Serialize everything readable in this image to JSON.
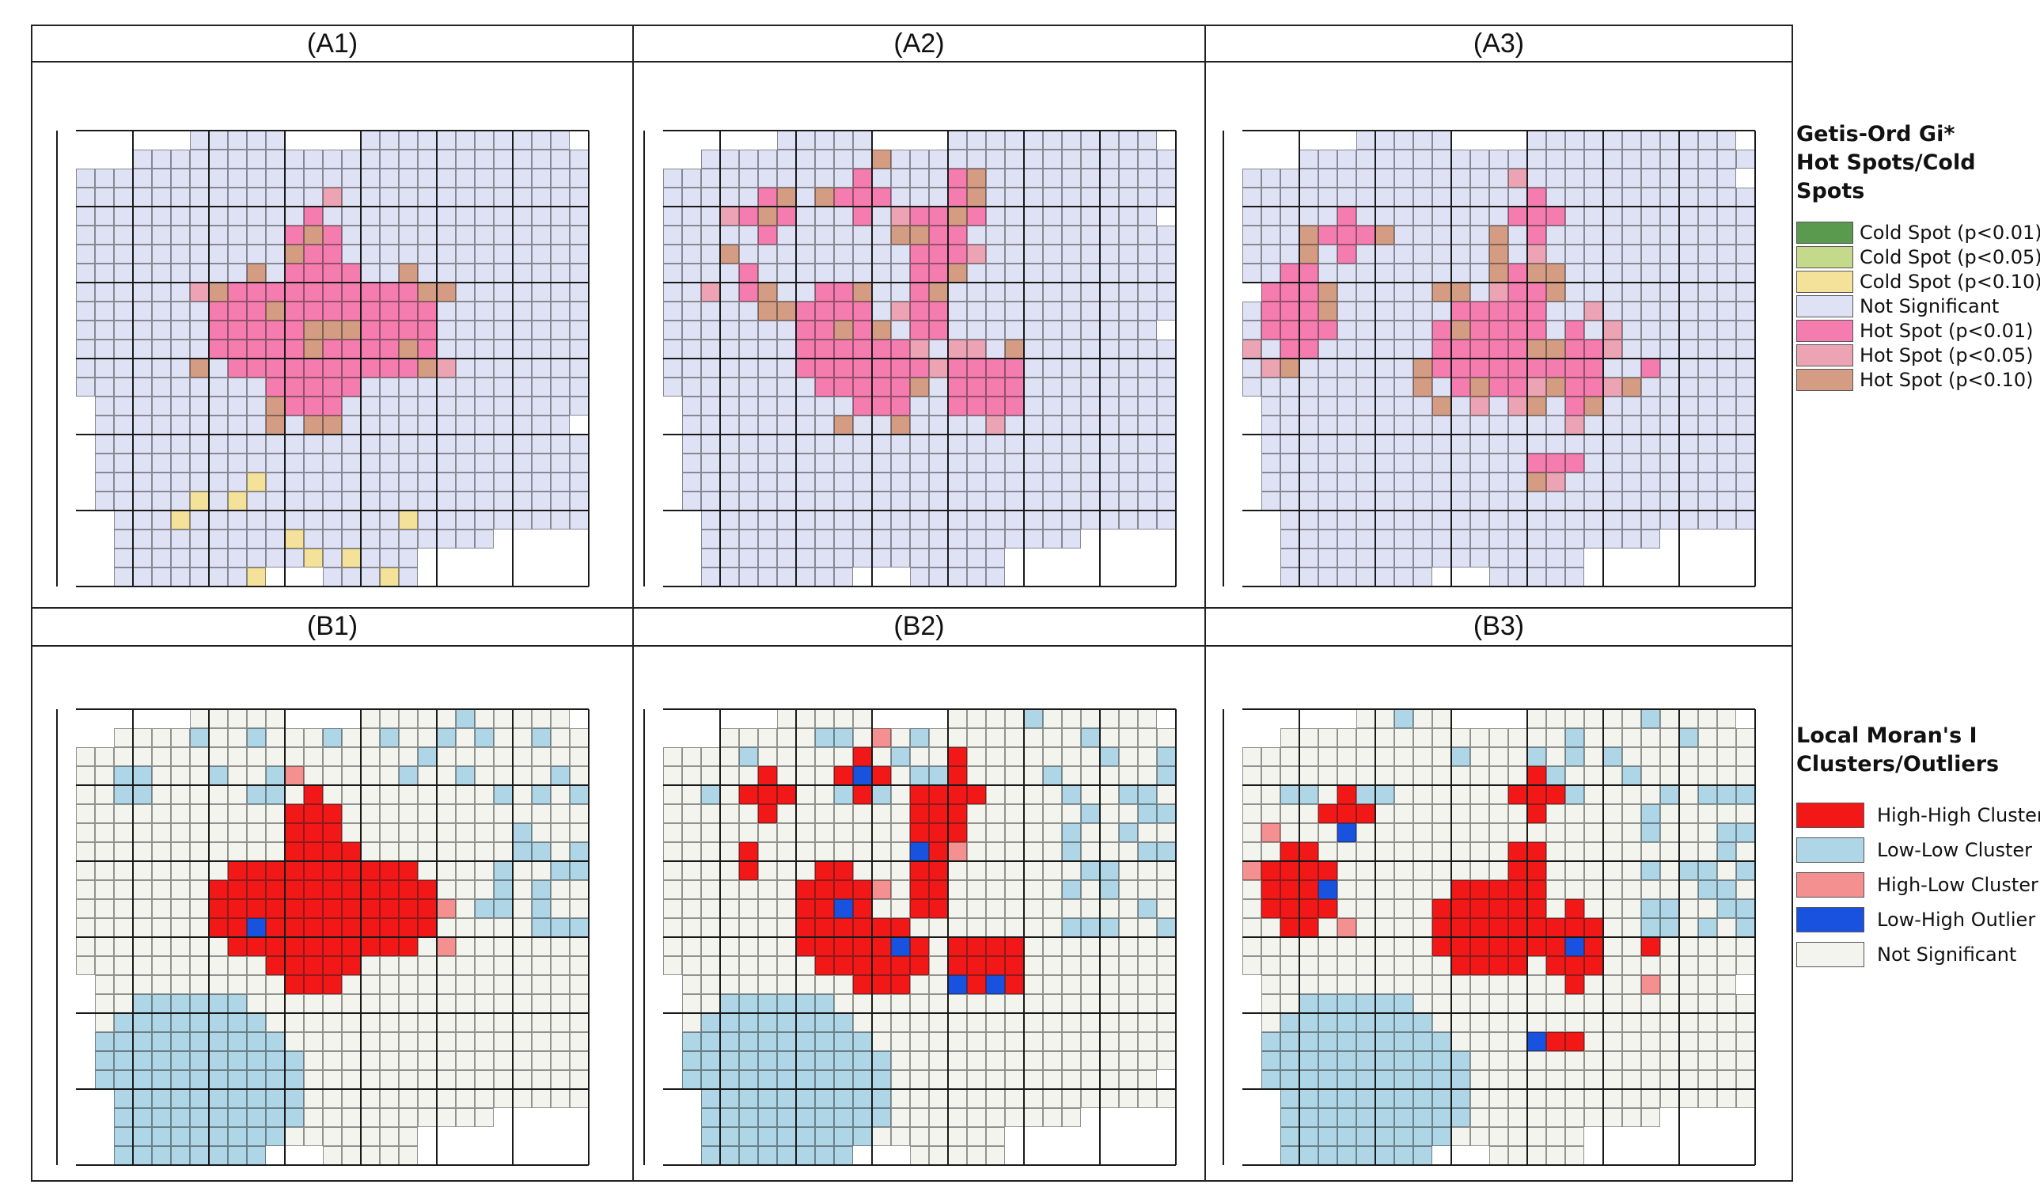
{
  "panels": [
    {
      "id": "A1",
      "label": "(A1)",
      "row": 0,
      "col": 0,
      "pattern": "gi-center-blob"
    },
    {
      "id": "A2",
      "label": "(A2)",
      "row": 0,
      "col": 1,
      "pattern": "gi-hook"
    },
    {
      "id": "A3",
      "label": "(A3)",
      "row": 0,
      "col": 2,
      "pattern": "gi-scattered"
    },
    {
      "id": "B1",
      "label": "(B1)",
      "row": 1,
      "col": 0,
      "pattern": "moran-center-blob"
    },
    {
      "id": "B2",
      "label": "(B2)",
      "row": 1,
      "col": 1,
      "pattern": "moran-hook"
    },
    {
      "id": "B3",
      "label": "(B3)",
      "row": 1,
      "col": 2,
      "pattern": "moran-scattered"
    }
  ],
  "colors": {
    "cold_001": "#5a9a4e",
    "cold_005": "#c4d98a",
    "cold_010": "#f4e19a",
    "gi_not_significant": "#dfe2f4",
    "hot_001": "#f47cae",
    "hot_005": "#eca4b4",
    "hot_010": "#d49c82",
    "high_high": "#f21818",
    "low_low": "#aed6e6",
    "high_low": "#f49090",
    "low_high": "#1a52e0",
    "moran_not_significant": "#f4f4ef",
    "grid_line": "#1a1a1a",
    "frame": "#222222"
  },
  "legend_gi": {
    "title_line1": "Getis-Ord Gi*",
    "title_line2": "Hot Spots/Cold Spots",
    "items": [
      {
        "label": "Cold Spot (p<0.01)",
        "color_key": "cold_001"
      },
      {
        "label": "Cold Spot (p<0.05)",
        "color_key": "cold_005"
      },
      {
        "label": "Cold Spot (p<0.10)",
        "color_key": "cold_010"
      },
      {
        "label": "Not Significant",
        "color_key": "gi_not_significant"
      },
      {
        "label": "Hot Spot (p<0.01)",
        "color_key": "hot_001"
      },
      {
        "label": "Hot Spot (p<0.05)",
        "color_key": "hot_005"
      },
      {
        "label": "Hot Spot (p<0.10)",
        "color_key": "hot_010"
      }
    ]
  },
  "legend_moran": {
    "title_line1": "Local Moran's I",
    "title_line2": "Clusters/Outliers",
    "items": [
      {
        "label": "High-High Cluster",
        "color_key": "high_high"
      },
      {
        "label": "Low-Low Cluster",
        "color_key": "low_low"
      },
      {
        "label": "High-Low  Cluster",
        "color_key": "high_low"
      },
      {
        "label": "Low-High Outlier",
        "color_key": "low_high"
      },
      {
        "label": "Not Significant",
        "color_key": "moran_not_significant"
      }
    ]
  }
}
